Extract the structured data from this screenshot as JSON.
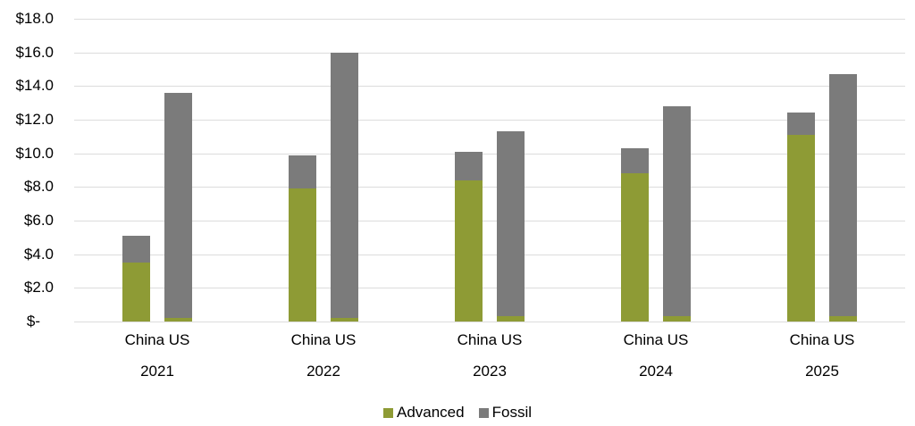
{
  "chart_data": {
    "type": "bar",
    "stacked": true,
    "title": "",
    "categories": [
      "2021",
      "2022",
      "2023",
      "2024",
      "2025"
    ],
    "sub_categories": [
      "China",
      "US"
    ],
    "pair_label": "China US",
    "series": [
      {
        "name": "Advanced",
        "color": "#8e9b35",
        "china": [
          3.5,
          7.9,
          8.4,
          8.8,
          11.1
        ],
        "us": [
          0.2,
          0.2,
          0.3,
          0.3,
          0.3
        ]
      },
      {
        "name": "Fossil",
        "color": "#7b7b7b",
        "china": [
          1.6,
          2.0,
          1.7,
          1.5,
          1.3
        ],
        "us": [
          13.4,
          15.8,
          11.0,
          12.5,
          14.4
        ]
      }
    ],
    "totals": {
      "china": [
        5.1,
        9.9,
        10.1,
        10.3,
        12.4
      ],
      "us": [
        13.6,
        16.0,
        11.3,
        12.8,
        14.7
      ]
    },
    "y_axis": {
      "min": 0,
      "max": 18,
      "tick_step": 2,
      "tick_labels": [
        "$18.0",
        "$16.0",
        "$14.0",
        "$12.0",
        "$10.0",
        "$8.0",
        "$6.0",
        "$4.0",
        "$2.0",
        "$-"
      ],
      "tick_values": [
        18,
        16,
        14,
        12,
        10,
        8,
        6,
        4,
        2,
        0
      ],
      "grid": true,
      "gridline_color": "#dcdcdc"
    },
    "legend": {
      "position": "bottom",
      "entries": [
        {
          "label": "Advanced",
          "color": "#8e9b35"
        },
        {
          "label": "Fossil",
          "color": "#7b7b7b"
        }
      ]
    }
  }
}
